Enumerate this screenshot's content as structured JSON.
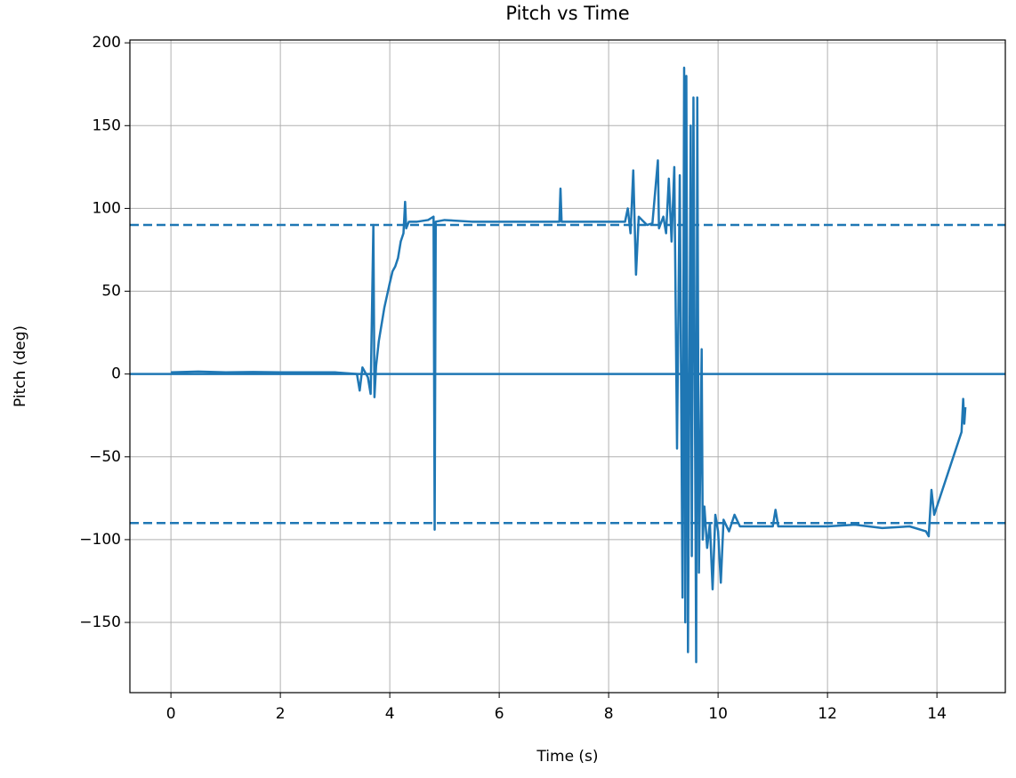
{
  "chart_data": {
    "type": "line",
    "title": "Pitch vs Time",
    "x_label": "Time (s)",
    "y_label": "Pitch (deg)",
    "xlim": [
      -0.75,
      15.25
    ],
    "ylim": [
      -192.4,
      201.7
    ],
    "xticks": [
      0,
      2,
      4,
      6,
      8,
      10,
      12,
      14
    ],
    "yticks": [
      {
        "value": -150,
        "label": "−150"
      },
      {
        "value": -100,
        "label": "−100"
      },
      {
        "value": -50,
        "label": "−50"
      },
      0,
      50,
      100,
      150,
      200
    ],
    "grid": true,
    "reference_lines": [
      {
        "value": 90,
        "style": "dashed"
      },
      {
        "value": -90,
        "style": "dashed"
      },
      {
        "value": 0,
        "style": "solid"
      }
    ],
    "x": [
      0,
      0.5,
      1,
      1.5,
      2,
      2.5,
      3,
      3.4,
      3.45,
      3.5,
      3.6,
      3.65,
      3.7,
      3.72,
      3.75,
      3.8,
      3.9,
      4.0,
      4.05,
      4.1,
      4.15,
      4.2,
      4.25,
      4.28,
      4.3,
      4.35,
      4.5,
      4.7,
      4.8,
      4.82,
      4.84,
      5,
      5.5,
      6,
      6.5,
      7,
      7.1,
      7.12,
      7.14,
      7.5,
      8,
      8.3,
      8.35,
      8.4,
      8.45,
      8.5,
      8.55,
      8.7,
      8.8,
      8.9,
      8.92,
      9.0,
      9.05,
      9.1,
      9.15,
      9.2,
      9.25,
      9.3,
      9.35,
      9.38,
      9.4,
      9.42,
      9.45,
      9.5,
      9.52,
      9.55,
      9.6,
      9.62,
      9.65,
      9.7,
      9.72,
      9.75,
      9.8,
      9.85,
      9.9,
      9.95,
      10,
      10.05,
      10.1,
      10.2,
      10.3,
      10.4,
      10.6,
      11,
      11.05,
      11.1,
      11.5,
      12,
      12.5,
      13,
      13.5,
      13.8,
      13.85,
      13.9,
      13.95,
      14,
      14.1,
      14.2,
      14.3,
      14.4,
      14.45,
      14.48,
      14.5,
      14.52
    ],
    "series": [
      {
        "name": "Pitch",
        "color": "#1f77b4",
        "values": [
          1,
          1.5,
          1,
          1.2,
          1,
          1,
          1,
          0,
          -10,
          4,
          -2,
          -12,
          90,
          -14,
          5,
          20,
          40,
          55,
          62,
          65,
          70,
          80,
          85,
          104,
          88,
          92,
          92,
          93,
          95,
          -94,
          92,
          93,
          92,
          92,
          92,
          92,
          92,
          112,
          92,
          92,
          92,
          92,
          100,
          85,
          123,
          60,
          95,
          90,
          91,
          129,
          88,
          95,
          85,
          118,
          80,
          125,
          -45,
          120,
          -135,
          185,
          -150,
          180,
          -168,
          150,
          -110,
          167,
          -174,
          167,
          -120,
          15,
          -100,
          -80,
          -105,
          -90,
          -130,
          -85,
          -95,
          -126,
          -88,
          -95,
          -85,
          -92,
          -92,
          -92,
          -82,
          -92,
          -92,
          -92,
          -91,
          -93,
          -92,
          -95,
          -98,
          -70,
          -85,
          -80,
          -70,
          -60,
          -50,
          -40,
          -35,
          -15,
          -30,
          -20
        ]
      }
    ]
  }
}
